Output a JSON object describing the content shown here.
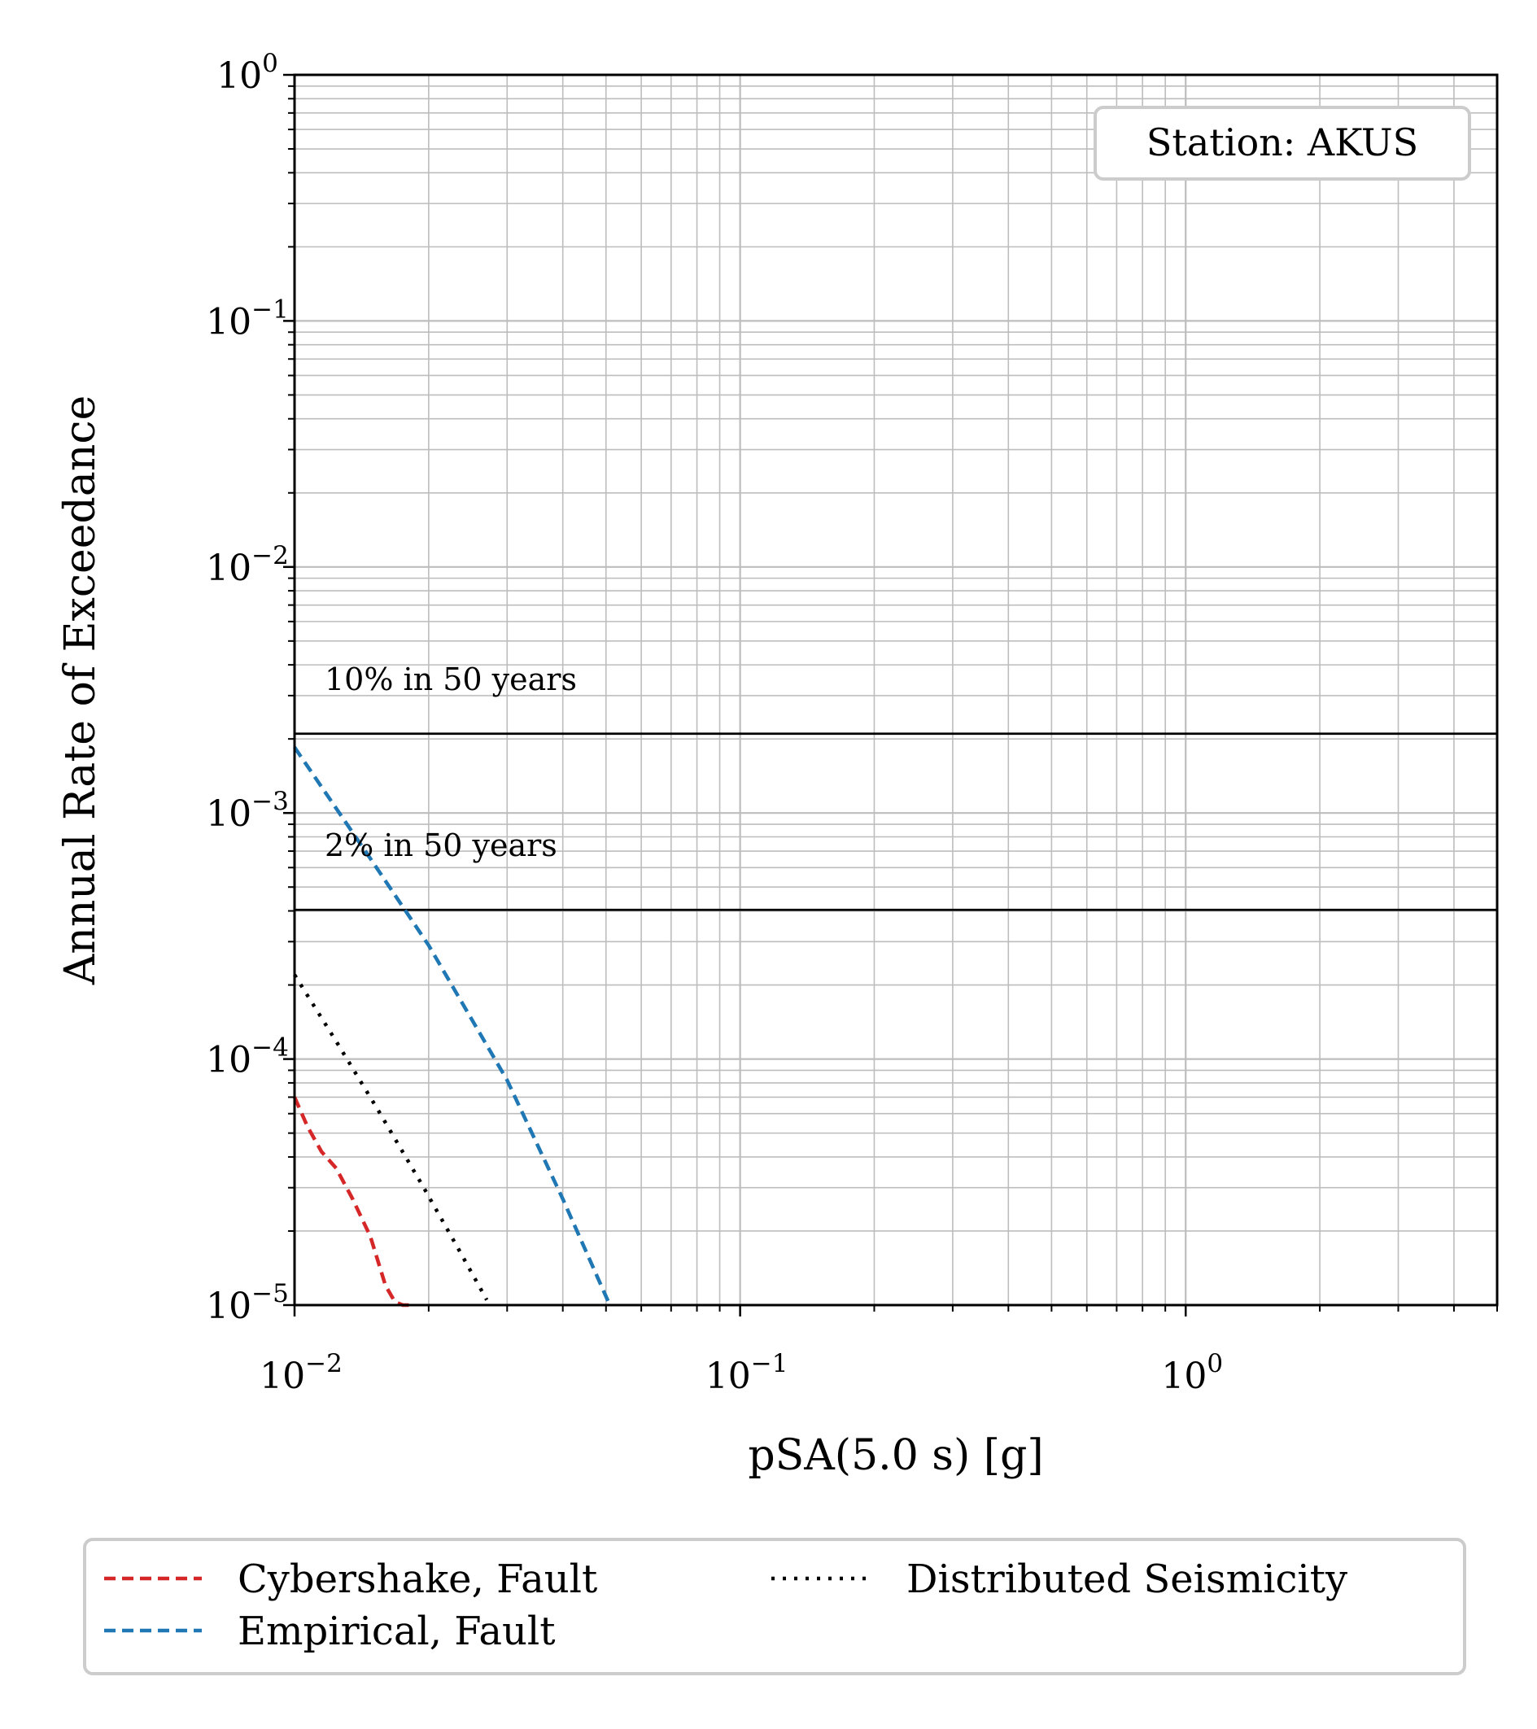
{
  "chart_data": {
    "type": "line",
    "xlabel": "pSA(5.0 s) [g]",
    "ylabel": "Annual Rate of Exceedance",
    "xscale": "log",
    "yscale": "log",
    "xlim": [
      0.01,
      5.0
    ],
    "ylim": [
      1e-05,
      1.0
    ],
    "grid": "major and minor",
    "x_ticks": [
      {
        "value": 0.01,
        "base": "10",
        "exp": "−2"
      },
      {
        "value": 0.1,
        "base": "10",
        "exp": "−1"
      },
      {
        "value": 1.0,
        "base": "10",
        "exp": "0"
      }
    ],
    "y_ticks": [
      {
        "value": 1e-05,
        "base": "10",
        "exp": "−5"
      },
      {
        "value": 0.0001,
        "base": "10",
        "exp": "−4"
      },
      {
        "value": 0.001,
        "base": "10",
        "exp": "−3"
      },
      {
        "value": 0.01,
        "base": "10",
        "exp": "−2"
      },
      {
        "value": 0.1,
        "base": "10",
        "exp": "−1"
      },
      {
        "value": 1.0,
        "base": "10",
        "exp": "0"
      }
    ],
    "hlines": [
      {
        "label": "10% in 50 years",
        "y": 0.0021
      },
      {
        "label": "2% in 50 years",
        "y": 0.000404
      }
    ],
    "annotation_box": "Station: AKUS",
    "legend_position": "below plot, 2 columns",
    "series": [
      {
        "name": "Cybershake, Fault",
        "color": "#d62728",
        "style": "dashed",
        "x": [
          0.01,
          0.0107,
          0.0115,
          0.0124,
          0.0135,
          0.0148,
          0.016,
          0.0168,
          0.0175,
          0.0185
        ],
        "y": [
          7e-05,
          5.3e-05,
          4.2e-05,
          3.6e-05,
          2.7e-05,
          1.9e-05,
          1.2e-05,
          1.03e-05,
          1e-05,
          1e-05
        ]
      },
      {
        "name": "Empirical, Fault",
        "color": "#1f77b4",
        "style": "dashed",
        "x": [
          0.01,
          0.015,
          0.02,
          0.03,
          0.04,
          0.051
        ],
        "y": [
          0.00185,
          0.00063,
          0.00029,
          8.2e-05,
          2.7e-05,
          1e-05
        ]
      },
      {
        "name": "Distributed Seismicity",
        "color": "#000000",
        "style": "dotted",
        "x": [
          0.01,
          0.0124,
          0.0154,
          0.0195,
          0.0235,
          0.027
        ],
        "y": [
          0.00022,
          0.000118,
          6.2e-05,
          3e-05,
          1.65e-05,
          1.05e-05
        ]
      }
    ]
  }
}
